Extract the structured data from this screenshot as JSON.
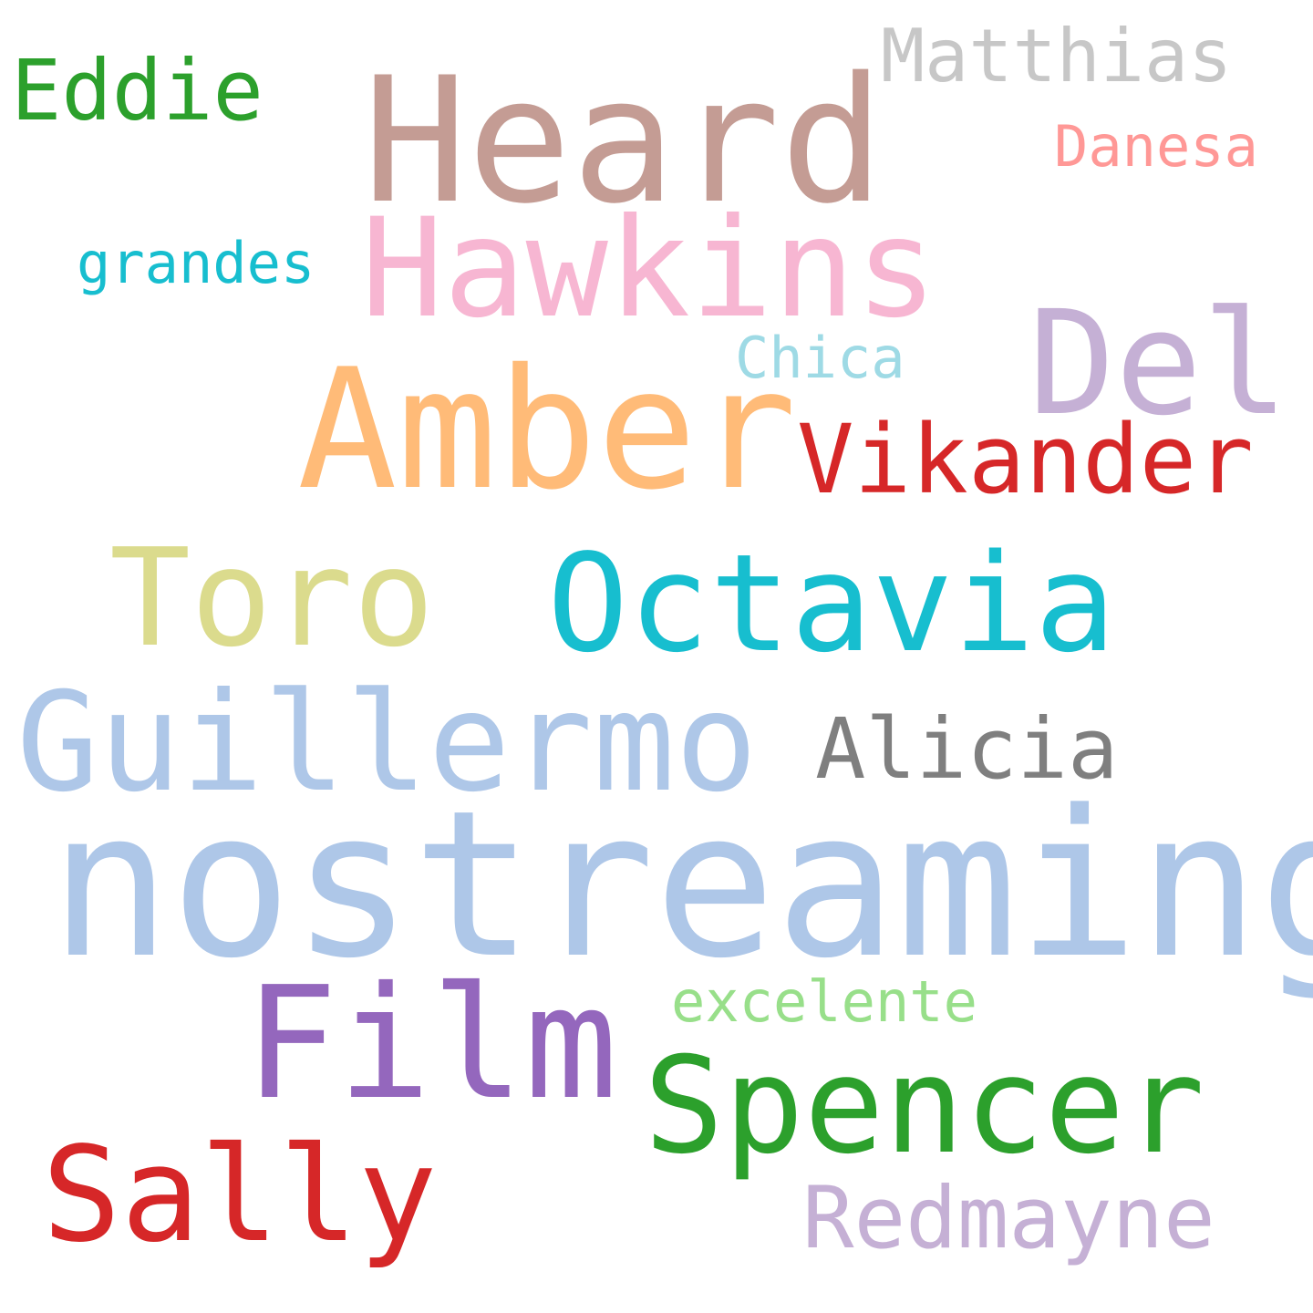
{
  "words": {
    "nostreaming": {
      "text": "nostreaming",
      "color": "#aec7e8"
    },
    "heard": {
      "text": "Heard",
      "color": "#c49c94"
    },
    "amber": {
      "text": "Amber",
      "color": "#ffbb78"
    },
    "film": {
      "text": "Film",
      "color": "#9467bd"
    },
    "hawkins": {
      "text": "Hawkins",
      "color": "#f7b6d2"
    },
    "del": {
      "text": "Del",
      "color": "#c5b0d5"
    },
    "guillermo": {
      "text": "Guillermo",
      "color": "#aec7e8"
    },
    "octavia": {
      "text": "Octavia",
      "color": "#17becf"
    },
    "toro": {
      "text": "Toro",
      "color": "#dbdb8d"
    },
    "spencer": {
      "text": "Spencer",
      "color": "#2ca02c"
    },
    "sally": {
      "text": "Sally",
      "color": "#d62728"
    },
    "vikander": {
      "text": "Vikander",
      "color": "#d62728"
    },
    "alicia": {
      "text": "Alicia",
      "color": "#7f7f7f"
    },
    "redmayne": {
      "text": "Redmayne",
      "color": "#c5b0d5"
    },
    "eddie": {
      "text": "Eddie",
      "color": "#2ca02c"
    },
    "matthias": {
      "text": "Matthias",
      "color": "#c7c7c7"
    },
    "danesa": {
      "text": "Danesa",
      "color": "#ff9896"
    },
    "grandes": {
      "text": "grandes",
      "color": "#17becf"
    },
    "chica": {
      "text": "Chica",
      "color": "#9edae5"
    },
    "excelente": {
      "text": "excelente",
      "color": "#98df8a"
    }
  }
}
